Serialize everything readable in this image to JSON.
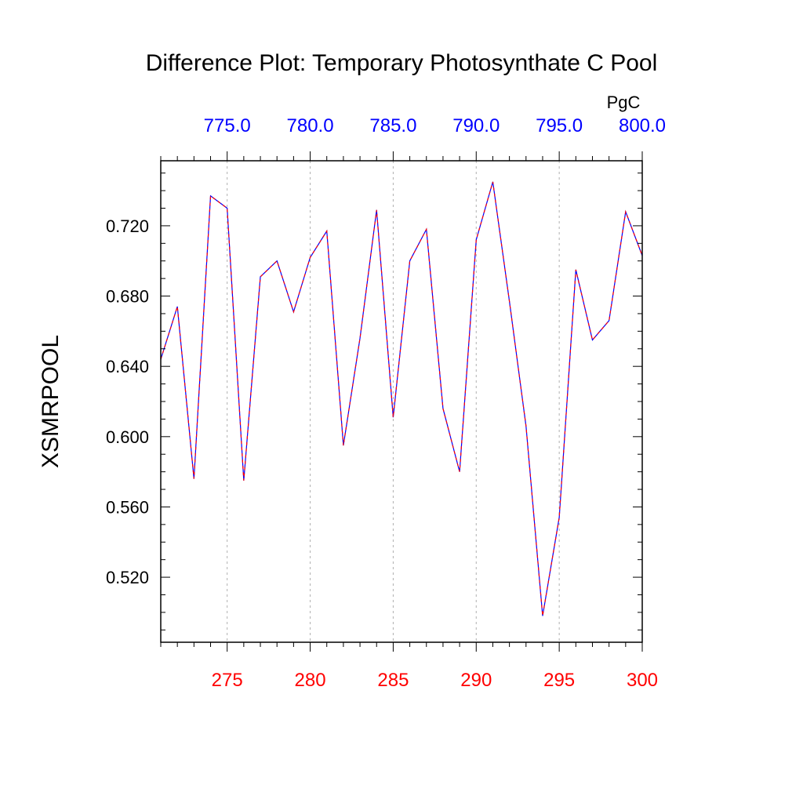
{
  "chart_data": {
    "type": "line",
    "title": "Difference Plot: Temporary Photosynthate C Pool",
    "ylabel": "XSMRPOOL",
    "top_axis_unit": "PgC",
    "x": [
      271,
      272,
      273,
      274,
      275,
      276,
      277,
      278,
      279,
      280,
      281,
      282,
      283,
      284,
      285,
      286,
      287,
      288,
      289,
      290,
      291,
      292,
      293,
      294,
      295,
      296,
      297,
      298,
      299,
      300
    ],
    "series": [
      {
        "color": "#0000ff",
        "values": [
          0.644,
          0.674,
          0.576,
          0.737,
          0.73,
          0.575,
          0.691,
          0.7,
          0.671,
          0.702,
          0.717,
          0.595,
          0.656,
          0.729,
          0.611,
          0.7,
          0.718,
          0.616,
          0.58,
          0.712,
          0.745,
          0.677,
          0.606,
          0.498,
          0.554,
          0.695,
          0.655,
          0.666,
          0.728,
          0.703
        ]
      },
      {
        "color": "#ff0000",
        "values": [
          0.644,
          0.674,
          0.576,
          0.737,
          0.73,
          0.575,
          0.691,
          0.7,
          0.671,
          0.702,
          0.717,
          0.595,
          0.656,
          0.729,
          0.611,
          0.7,
          0.718,
          0.616,
          0.58,
          0.712,
          0.745,
          0.677,
          0.606,
          0.498,
          0.554,
          0.695,
          0.655,
          0.666,
          0.728,
          0.703
        ]
      }
    ],
    "xlim": [
      271,
      300
    ],
    "ylim": [
      0.483,
      0.757
    ],
    "x_ticks": [
      275,
      280,
      285,
      290,
      295,
      300
    ],
    "x_tick_labels": [
      "275",
      "280",
      "285",
      "290",
      "295",
      "300"
    ],
    "top_ticks": [
      775,
      780,
      785,
      790,
      795,
      800
    ],
    "top_tick_labels": [
      "775.0",
      "780.0",
      "785.0",
      "790.0",
      "795.0",
      "800.0"
    ],
    "top_lim": [
      771,
      800
    ],
    "y_ticks": [
      0.52,
      0.56,
      0.6,
      0.64,
      0.68,
      0.72
    ],
    "y_tick_labels": [
      "0.520",
      "0.560",
      "0.600",
      "0.640",
      "0.680",
      "0.720"
    ],
    "vertical_gridlines": true,
    "colors": {
      "bottom_axis": "#ff0000",
      "top_axis": "#0000ff",
      "gridline": "#b0b0b0"
    }
  }
}
